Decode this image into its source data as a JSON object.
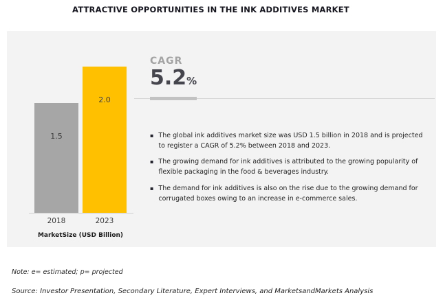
{
  "title": "ATTRACTIVE OPPORTUNITIES IN THE INK ADDITIVES MARKET",
  "chart_data": {
    "type": "bar",
    "title": "",
    "categories": [
      "2018",
      "2023"
    ],
    "values": [
      1.5,
      2.0
    ],
    "value_labels": [
      "1.5",
      "2.0"
    ],
    "bar_colors": [
      "#a6a6a6",
      "#ffc000"
    ],
    "xlabel": "MarketSize (USD Billion)",
    "ylabel": "",
    "ylim": [
      0,
      2.0
    ],
    "grid": false,
    "legend": "none"
  },
  "cagr": {
    "label": "CAGR",
    "value": "5.2",
    "unit": "%"
  },
  "bullets": [
    "The global ink additives market size was USD 1.5 billion in 2018 and is projected to register a CAGR of 5.2% between 2018 and 2023.",
    "The growing demand for ink additives is attributed to the growing popularity of flexible packaging in the food & beverages industry.",
    "The demand for ink additives is also on the rise due to the growing demand for corrugated boxes owing to an increase in e-commerce sales."
  ],
  "icons": {
    "bullet": "▪"
  },
  "note": "Note: e= estimated; p= projected",
  "source": "Source: Investor Presentation, Secondary Literature, Expert Interviews, and MarketsandMarkets Analysis",
  "colors": {
    "bar_2018": "#a6a6a6",
    "bar_2023": "#ffc000",
    "cagr_label_gray": "#a3a3a3",
    "cagr_value_dark": "#45454d",
    "panel_background": "#f3f3f3"
  }
}
